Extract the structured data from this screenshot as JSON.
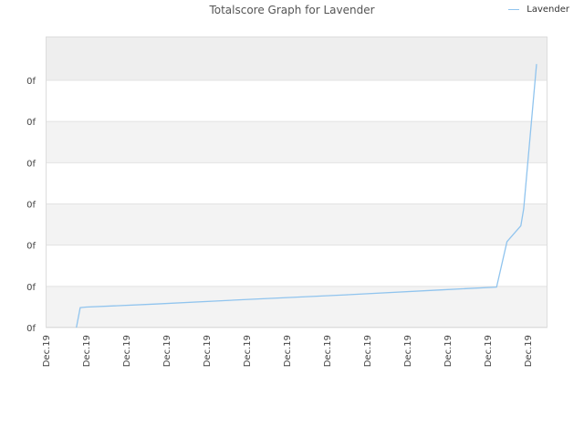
{
  "title": "Totalscore Graph for Lavender",
  "legend": {
    "label": "Lavender",
    "color": "#90c4ee"
  },
  "chart_data": {
    "type": "line",
    "title": "Totalscore Graph for Lavender",
    "xlabel": "",
    "ylabel": "",
    "x_tick_labels": [
      "Dec.19",
      "Dec.19",
      "Dec.19",
      "Dec.19",
      "Dec.19",
      "Dec.19",
      "Dec.19",
      "Dec.19",
      "Dec.19",
      "Dec.19",
      "Dec.19",
      "Dec.19",
      "Dec.19"
    ],
    "y_tick_labels": [
      "0f",
      "0f",
      "0f",
      "0f",
      "0f",
      "0f",
      "0f"
    ],
    "xlim": [
      0,
      100
    ],
    "ylim": [
      0,
      100
    ],
    "grid": "horizontal bands",
    "legend_position": "top-right",
    "series": [
      {
        "name": "Lavender",
        "color": "#90c4ee",
        "points": [
          [
            3.4,
            0
          ],
          [
            4.2,
            7.2
          ],
          [
            5.5,
            7.4
          ],
          [
            20,
            8.5
          ],
          [
            40,
            10.2
          ],
          [
            60,
            11.8
          ],
          [
            80,
            13.6
          ],
          [
            91.6,
            14.6
          ],
          [
            93.8,
            31.0
          ],
          [
            96.7,
            36.7
          ],
          [
            97.3,
            42.8
          ],
          [
            100,
            95.0
          ]
        ]
      }
    ]
  }
}
